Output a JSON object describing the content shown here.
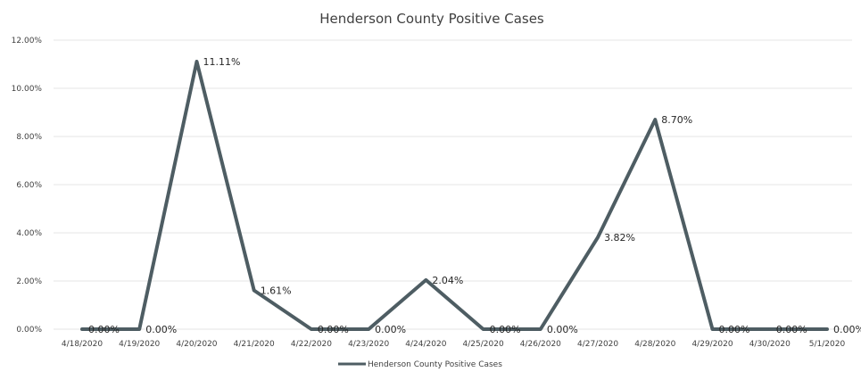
{
  "chart_data": {
    "type": "line",
    "title": "Henderson County Positive Cases",
    "xlabel": "",
    "ylabel": "",
    "categories": [
      "4/18/2020",
      "4/19/2020",
      "4/20/2020",
      "4/21/2020",
      "4/22/2020",
      "4/23/2020",
      "4/24/2020",
      "4/25/2020",
      "4/26/2020",
      "4/27/2020",
      "4/28/2020",
      "4/29/2020",
      "4/30/2020",
      "5/1/2020"
    ],
    "series": [
      {
        "name": "Henderson County Positive Cases",
        "values": [
          0.0,
          0.0,
          11.11,
          1.61,
          0.0,
          0.0,
          2.04,
          0.0,
          0.0,
          3.82,
          8.7,
          0.0,
          0.0,
          0.0
        ],
        "labels": [
          "0.00%",
          "0.00%",
          "11.11%",
          "1.61%",
          "0.00%",
          "0.00%",
          "2.04%",
          "0.00%",
          "0.00%",
          "3.82%",
          "8.70%",
          "0.00%",
          "0.00%",
          "0.00%"
        ],
        "color": "#4e5d63"
      }
    ],
    "ylim": [
      0,
      12
    ],
    "yticks": [
      "0.00%",
      "2.00%",
      "4.00%",
      "6.00%",
      "8.00%",
      "10.00%",
      "12.00%"
    ],
    "grid": true,
    "gridColor": "#e4e4e4",
    "legend": "bottom"
  }
}
